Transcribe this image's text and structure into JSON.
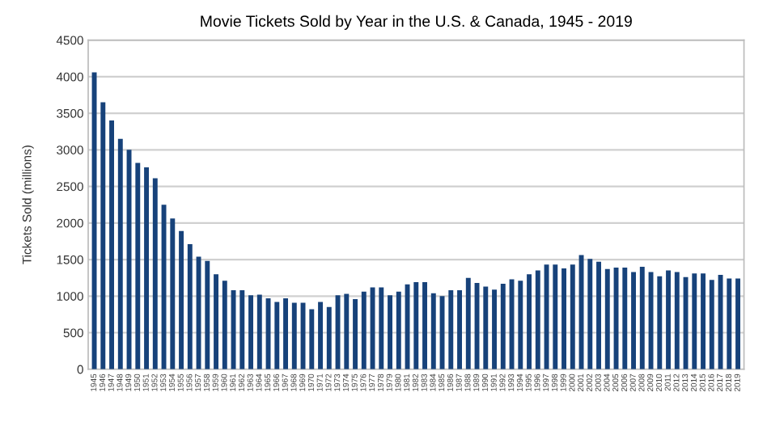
{
  "chart_data": {
    "type": "bar",
    "title": "Movie Tickets Sold by Year in the U.S. & Canada, 1945 - 2019",
    "ylabel": "Tickets Sold (millions)",
    "categories": [
      "1945",
      "1946",
      "1947",
      "1948",
      "1949",
      "1950",
      "1951",
      "1952",
      "1953",
      "1954",
      "1955",
      "1956",
      "1957",
      "1958",
      "1959",
      "1960",
      "1961",
      "1962",
      "1963",
      "1964",
      "1965",
      "1966",
      "1967",
      "1968",
      "1969",
      "1970",
      "1971",
      "1972",
      "1973",
      "1974",
      "1975",
      "1976",
      "1977",
      "1978",
      "1979",
      "1980",
      "1981",
      "1982",
      "1983",
      "1984",
      "1985",
      "1986",
      "1987",
      "1988",
      "1989",
      "1990",
      "1991",
      "1992",
      "1993",
      "1994",
      "1995",
      "1996",
      "1997",
      "1998",
      "1999",
      "2000",
      "2001",
      "2002",
      "2003",
      "2004",
      "2005",
      "2006",
      "2007",
      "2008",
      "2009",
      "2010",
      "2011",
      "2012",
      "2013",
      "2014",
      "2015",
      "2016",
      "2017",
      "2018",
      "2019"
    ],
    "values": [
      4060,
      3650,
      3400,
      3150,
      3000,
      2820,
      2760,
      2610,
      2250,
      2060,
      1890,
      1710,
      1540,
      1480,
      1300,
      1210,
      1080,
      1080,
      1010,
      1020,
      970,
      920,
      970,
      910,
      910,
      820,
      920,
      850,
      1010,
      1030,
      960,
      1060,
      1120,
      1120,
      1010,
      1060,
      1160,
      1190,
      1190,
      1040,
      1000,
      1080,
      1080,
      1250,
      1180,
      1130,
      1090,
      1170,
      1230,
      1210,
      1300,
      1350,
      1430,
      1430,
      1380,
      1430,
      1560,
      1510,
      1470,
      1370,
      1390,
      1390,
      1330,
      1400,
      1330,
      1270,
      1350,
      1330,
      1260,
      1310,
      1310,
      1220,
      1290,
      1240,
      1240
    ],
    "color": "#17427a",
    "ylim": [
      0,
      4500
    ],
    "yticks": [
      0,
      500,
      1000,
      1500,
      2000,
      2500,
      3000,
      3500,
      4000,
      4500
    ],
    "grid": "y",
    "legend": false
  }
}
